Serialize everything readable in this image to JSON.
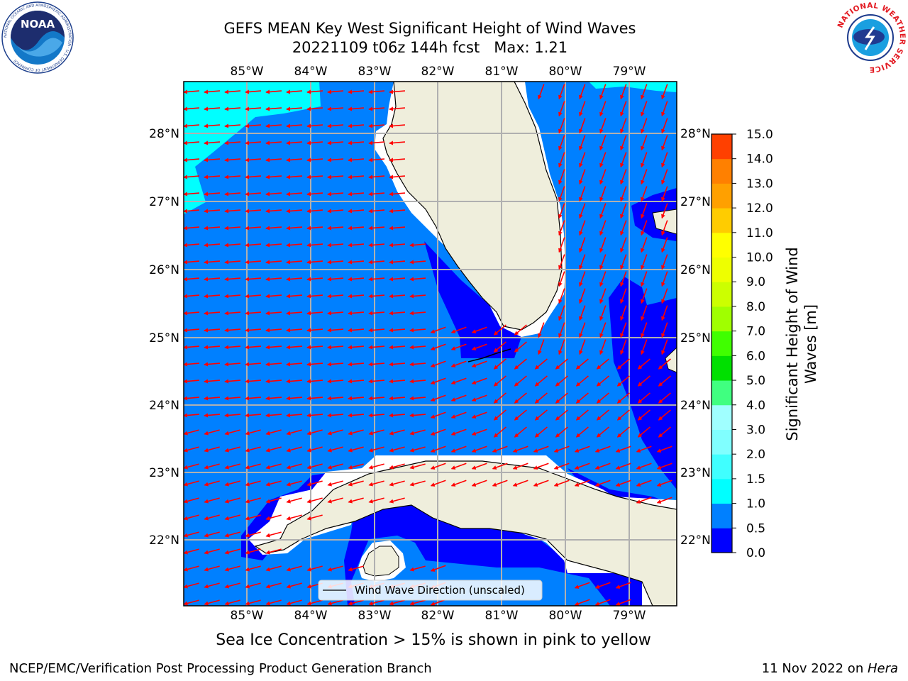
{
  "header": {
    "title_line1": "GEFS MEAN Key West Significant Height of Wind Waves",
    "title_line2": "20221109 t06z 144h fcst   Max: 1.21"
  },
  "logos": {
    "left": {
      "name": "noaa-logo",
      "text": "NOAA",
      "ring_text": "NATIONAL OCEANIC AND ATMOSPHERIC ADMINISTRATION · U.S. DEPARTMENT OF COMMERCE"
    },
    "right": {
      "name": "nws-logo",
      "ring_text": "NATIONAL WEATHER SERVICE"
    }
  },
  "map": {
    "lon_ticks": [
      "85°W",
      "84°W",
      "83°W",
      "82°W",
      "81°W",
      "80°W",
      "79°W"
    ],
    "lat_ticks": [
      "28°N",
      "27°N",
      "26°N",
      "25°N",
      "24°N",
      "23°N",
      "22°N"
    ],
    "legend_label": "Wind Wave Direction (unscaled)",
    "colors": {
      "land": "#efeedc",
      "bin_0_0.5": "#0000ff",
      "bin_0.5_1": "#0080ff",
      "bin_1_1.5": "#00ffff",
      "arrow": "#ff0000",
      "grid": "#b0b0b0"
    }
  },
  "colorbar": {
    "label_line1": "Significant Height of Wind",
    "label_line2": "Waves [m]",
    "ticks": [
      "0.0",
      "0.5",
      "1.0",
      "1.5",
      "2.0",
      "3.0",
      "4.0",
      "5.0",
      "6.0",
      "7.0",
      "8.0",
      "9.0",
      "10.0",
      "11.0",
      "12.0",
      "13.0",
      "14.0",
      "15.0"
    ],
    "colors": [
      "#0000ff",
      "#0080ff",
      "#00ffff",
      "#40ffff",
      "#80ffff",
      "#a0ffff",
      "#40ff80",
      "#00e000",
      "#40ff00",
      "#a0ff00",
      "#ccff00",
      "#eeff00",
      "#ffff00",
      "#ffcc00",
      "#ffa000",
      "#ff8000",
      "#ff4000",
      "#ff0000"
    ]
  },
  "caption": "Sea Ice Concentration > 15% is shown in pink to yellow",
  "footer": {
    "left": "NCEP/EMC/Verification Post Processing Product Generation Branch",
    "right_prefix": "11 Nov 2022 on ",
    "right_host": "Hera"
  }
}
